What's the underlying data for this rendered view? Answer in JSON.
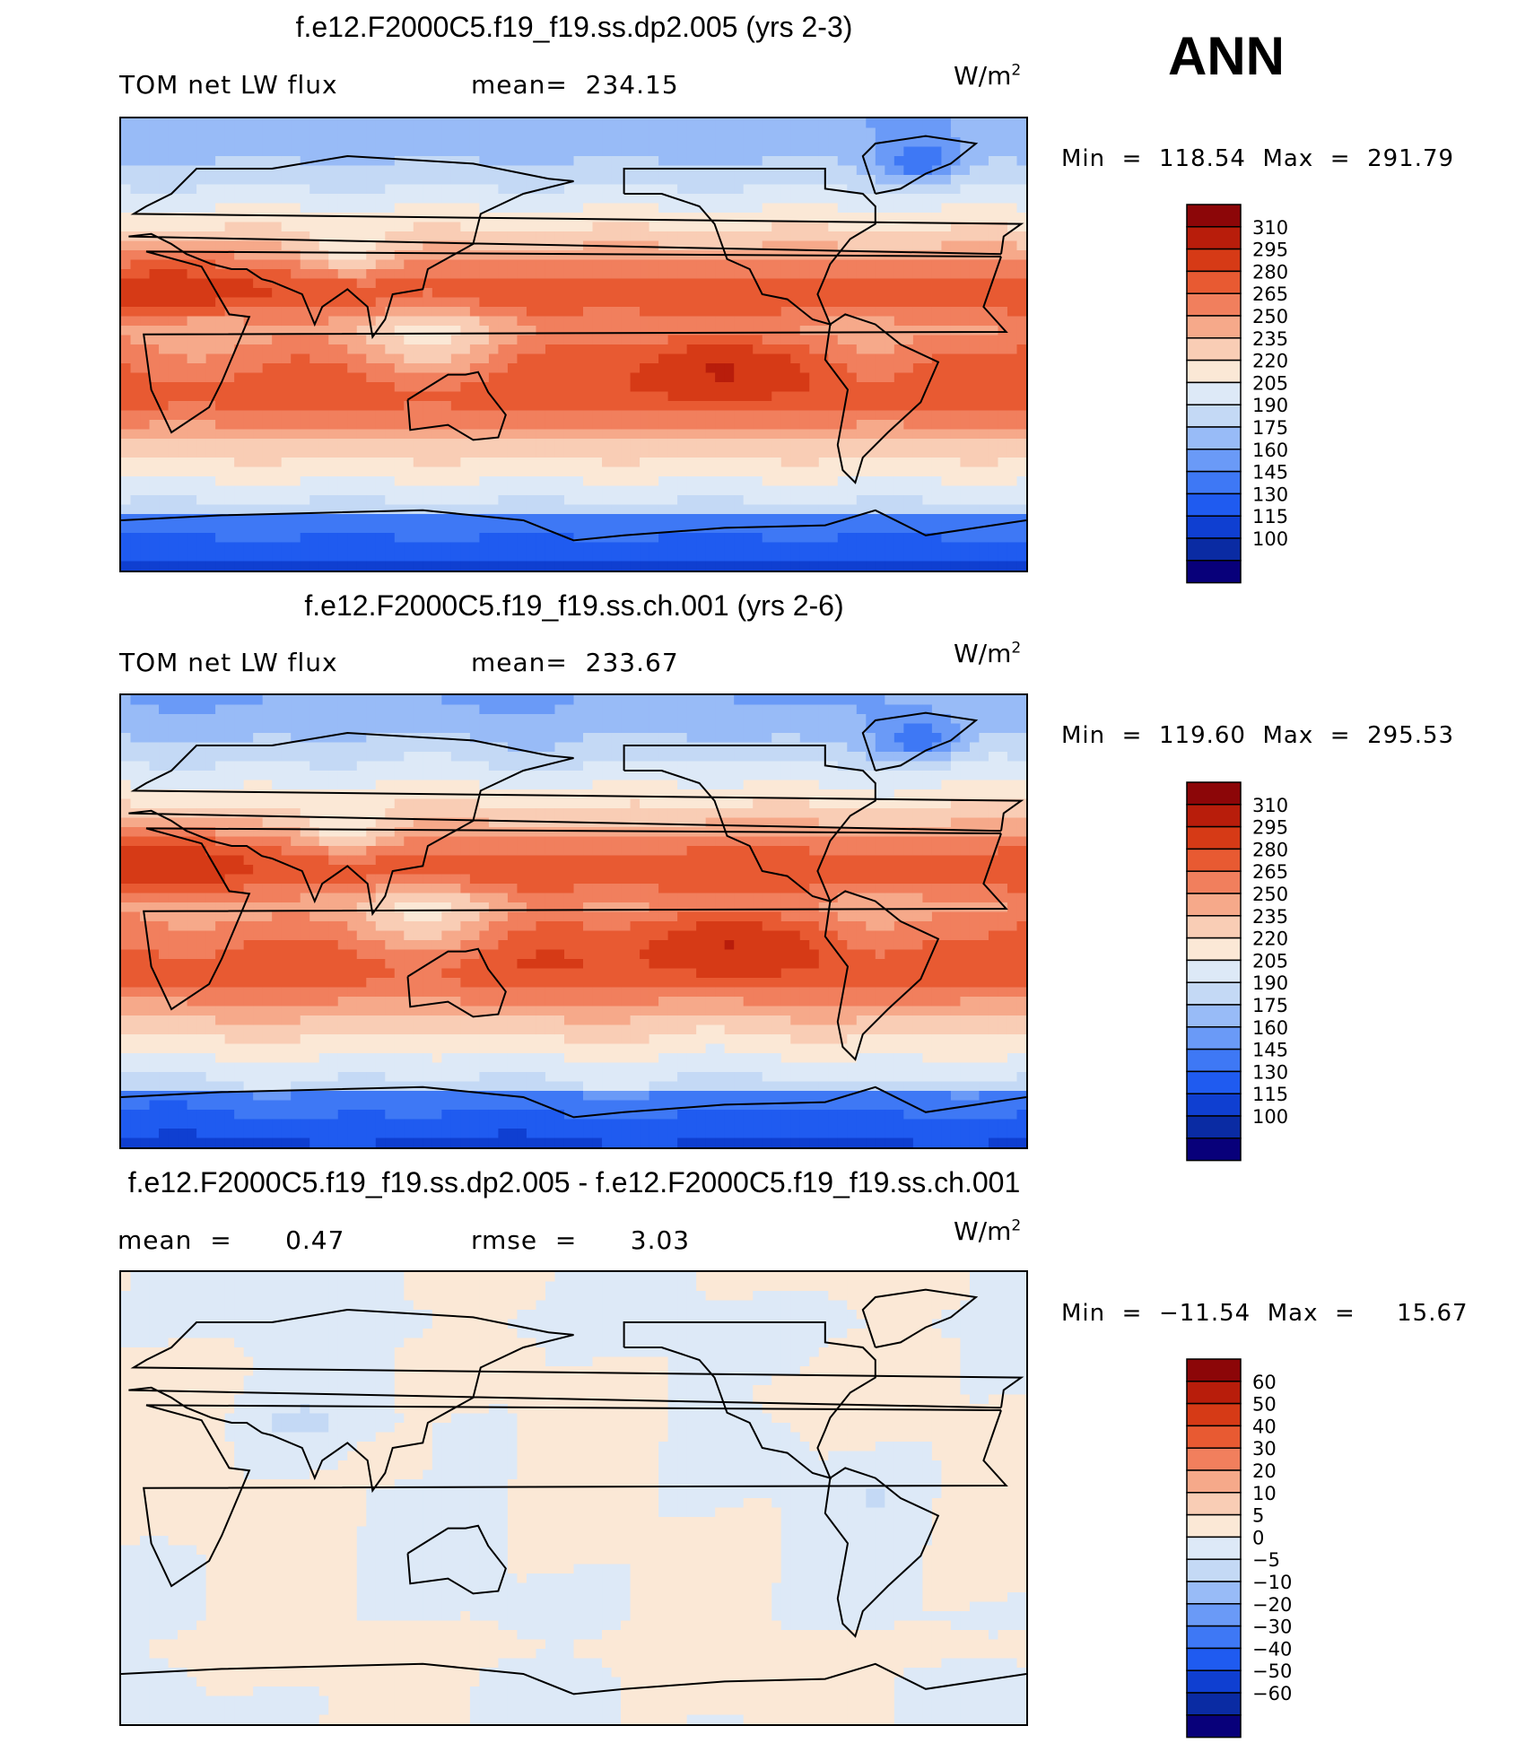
{
  "season": "ANN",
  "colors": {
    "abs_scale": [
      "#08007a",
      "#0a2ba3",
      "#0f3fd1",
      "#1f5bf0",
      "#3e78f5",
      "#6a9af7",
      "#98bbf7",
      "#c4d9f5",
      "#dde9f7",
      "#fbe8d6",
      "#f9cdb5",
      "#f6a98a",
      "#f17f5d",
      "#e85a32",
      "#d63a16",
      "#b81d0b",
      "#8c0608"
    ],
    "diff_scale": [
      "#08007a",
      "#0a2ba3",
      "#0f3fd1",
      "#1f5bf0",
      "#3e78f5",
      "#6a9af7",
      "#98bbf7",
      "#c4d9f5",
      "#dde9f7",
      "#fbe8d6",
      "#f9cdb5",
      "#f6a98a",
      "#f17f5d",
      "#e85a32",
      "#d63a16",
      "#b81d0b",
      "#8c0608"
    ]
  },
  "panels": [
    {
      "title": "f.e12.F2000C5.f19_f19.ss.dp2.005 (yrs 2-3)",
      "left_label": "TOM net LW flux",
      "center_label": "mean=  234.15",
      "units": "W/m",
      "units_sup": "2",
      "minmax": "Min  =  118.54  Max  =  291.79",
      "colorbar_ticks": [
        "310",
        "295",
        "280",
        "265",
        "250",
        "235",
        "220",
        "205",
        "190",
        "175",
        "160",
        "145",
        "130",
        "115",
        "100"
      ],
      "field": "abs"
    },
    {
      "title": "f.e12.F2000C5.f19_f19.ss.ch.001 (yrs 2-6)",
      "left_label": "TOM net LW flux",
      "center_label": "mean=  233.67",
      "units": "W/m",
      "units_sup": "2",
      "minmax": "Min  =  119.60  Max  =  295.53",
      "colorbar_ticks": [
        "310",
        "295",
        "280",
        "265",
        "250",
        "235",
        "220",
        "205",
        "190",
        "175",
        "160",
        "145",
        "130",
        "115",
        "100"
      ],
      "field": "abs"
    },
    {
      "title": "f.e12.F2000C5.f19_f19.ss.dp2.005 - f.e12.F2000C5.f19_f19.ss.ch.001",
      "left_label": "mean  =      0.47",
      "center_label": "rmse  =      3.03",
      "units": "W/m",
      "units_sup": "2",
      "minmax": "Min  =  −11.54  Max  =     15.67",
      "colorbar_ticks": [
        "60",
        "50",
        "40",
        "30",
        "20",
        "10",
        "5",
        "0",
        "−5",
        "−10",
        "−20",
        "−30",
        "−40",
        "−50",
        "−60"
      ],
      "field": "diff"
    }
  ]
}
